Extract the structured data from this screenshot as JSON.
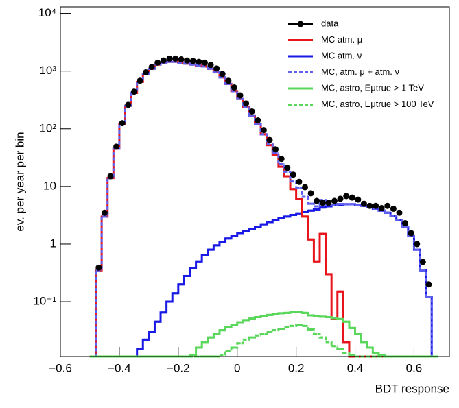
{
  "chart_data": {
    "type": "histogram",
    "ylabel": "ev. per year per bin",
    "xlabel": "BDT response",
    "xlim": [
      -0.6,
      0.72
    ],
    "ylim": [
      0.0112,
      13000
    ],
    "log_y": true,
    "xticks": [
      {
        "value": -0.6,
        "label": "−0.6"
      },
      {
        "value": -0.4,
        "label": "−0.4"
      },
      {
        "value": -0.2,
        "label": "−0.2"
      },
      0,
      0.2,
      0.4,
      0.6
    ],
    "yticks": [
      {
        "value": 0.1,
        "label": "10⁻¹"
      },
      1,
      10,
      {
        "value": 100,
        "label": "10²"
      },
      {
        "value": 1000,
        "label": "10³"
      },
      {
        "value": 10000,
        "label": "10⁴"
      }
    ],
    "bins": [
      -0.5,
      -0.48,
      -0.46,
      -0.44,
      -0.42,
      -0.4,
      -0.38,
      -0.36,
      -0.34,
      -0.32,
      -0.3,
      -0.28,
      -0.26,
      -0.24,
      -0.22,
      -0.2,
      -0.18,
      -0.16,
      -0.14,
      -0.12,
      -0.1,
      -0.08,
      -0.06,
      -0.04,
      -0.02,
      0,
      0.02,
      0.04,
      0.06,
      0.08,
      0.1,
      0.12,
      0.14,
      0.16,
      0.18,
      0.2,
      0.22,
      0.24,
      0.26,
      0.28,
      0.3,
      0.32,
      0.34,
      0.36,
      0.38,
      0.4,
      0.42,
      0.44,
      0.46,
      0.48,
      0.5,
      0.52,
      0.54,
      0.56,
      0.58,
      0.6,
      0.62,
      0.64,
      0.66,
      0.68
    ],
    "series": [
      {
        "name": "data",
        "color": "#000000",
        "style": "points",
        "values": [
          null,
          0.39,
          3.5,
          15,
          49,
          125,
          260,
          440,
          680,
          950,
          1180,
          1400,
          1530,
          1650,
          1650,
          1600,
          1530,
          1500,
          1450,
          1400,
          1280,
          1110,
          890,
          680,
          520,
          380,
          275,
          200,
          140,
          95,
          64,
          44,
          30,
          21,
          16,
          12,
          9.7,
          7.6,
          5.6,
          5.2,
          5.2,
          5.6,
          6.1,
          6.8,
          6.4,
          5.9,
          5.0,
          4.6,
          4.6,
          4.2,
          4.6,
          4.1,
          3.5,
          2.3,
          1.55,
          1.0,
          0.49,
          0.2,
          null
        ]
      },
      {
        "name": "MC atm. μ",
        "color": "#e8141c",
        "style": "solid",
        "values": [
          0,
          0.35,
          3,
          14,
          45,
          120,
          250,
          420,
          650,
          900,
          1100,
          1300,
          1400,
          1450,
          1450,
          1400,
          1350,
          1300,
          1250,
          1200,
          1100,
          950,
          780,
          600,
          450,
          330,
          240,
          170,
          120,
          80,
          52,
          35,
          22,
          15,
          9,
          6,
          3,
          1.2,
          0.5,
          1.5,
          0.3,
          0.05,
          0.15,
          0.02,
          0,
          0,
          0,
          0,
          0,
          0,
          0,
          0,
          0,
          0,
          0,
          0,
          0,
          0,
          0
        ]
      },
      {
        "name": "MC atm. ν",
        "color": "#1a1ae6",
        "style": "solid",
        "values": [
          0,
          0,
          0,
          0,
          0,
          0,
          0,
          0,
          0.015,
          0.022,
          0.03,
          0.045,
          0.065,
          0.1,
          0.14,
          0.2,
          0.28,
          0.38,
          0.5,
          0.65,
          0.8,
          0.95,
          1.1,
          1.25,
          1.4,
          1.55,
          1.7,
          1.85,
          2.0,
          2.2,
          2.4,
          2.6,
          2.8,
          3.0,
          3.2,
          3.4,
          3.6,
          3.8,
          4.0,
          4.3,
          4.5,
          4.7,
          4.8,
          4.9,
          4.9,
          4.8,
          4.6,
          4.4,
          4.1,
          3.8,
          3.5,
          3.1,
          2.6,
          2.0,
          1.4,
          0.8,
          0.35,
          0.12,
          0
        ]
      },
      {
        "name": "MC, atm. μ + atm. ν",
        "color": "#6060ee",
        "style": "dashed",
        "values": [
          0,
          0.35,
          3,
          14,
          45,
          120,
          250,
          420,
          650,
          900,
          1100,
          1300,
          1400,
          1450,
          1450,
          1400,
          1350,
          1300,
          1250,
          1200,
          1100,
          950,
          780,
          600,
          450,
          330,
          240,
          170,
          120,
          80,
          54.4,
          37.6,
          24.8,
          18,
          12.2,
          9.4,
          6.6,
          5,
          4.5,
          5.8,
          4.8,
          4.75,
          4.95,
          4.92,
          4.9,
          4.8,
          4.6,
          4.4,
          4.1,
          3.8,
          3.5,
          3.1,
          2.6,
          2.0,
          1.4,
          0.8,
          0.35,
          0.12,
          0
        ]
      },
      {
        "name": "MC, astro, Eμtrue > 1 TeV",
        "color": "#5ad75a",
        "style": "solid",
        "values": [
          0,
          0,
          0,
          0,
          0,
          0,
          0,
          0,
          0,
          0,
          0,
          0,
          0,
          0,
          0,
          0,
          0,
          0.012,
          0.016,
          0.02,
          0.024,
          0.028,
          0.032,
          0.036,
          0.04,
          0.044,
          0.048,
          0.051,
          0.054,
          0.057,
          0.059,
          0.061,
          0.063,
          0.064,
          0.066,
          0.066,
          0.064,
          0.058,
          0.056,
          0.055,
          0.054,
          0.052,
          0.05,
          0.045,
          0.035,
          0.028,
          0.02,
          0.016,
          0.013,
          0.012,
          0,
          0,
          0,
          0,
          0,
          0,
          0,
          0,
          0
        ]
      },
      {
        "name": "MC, astro, Eμtrue > 100 TeV",
        "color": "#5ad75a",
        "style": "dashed",
        "values": [
          0,
          0,
          0,
          0,
          0,
          0,
          0,
          0,
          0,
          0,
          0,
          0,
          0,
          0,
          0,
          0,
          0,
          0,
          0,
          0,
          0,
          0,
          0.012,
          0.014,
          0.016,
          0.019,
          0.022,
          0.024,
          0.026,
          0.028,
          0.03,
          0.032,
          0.034,
          0.036,
          0.038,
          0.04,
          0.038,
          0.033,
          0.028,
          0.024,
          0.02,
          0.017,
          0.015,
          0.013,
          0.012,
          0,
          0,
          0,
          0,
          0,
          0,
          0,
          0,
          0,
          0,
          0,
          0,
          0,
          0
        ]
      }
    ]
  }
}
